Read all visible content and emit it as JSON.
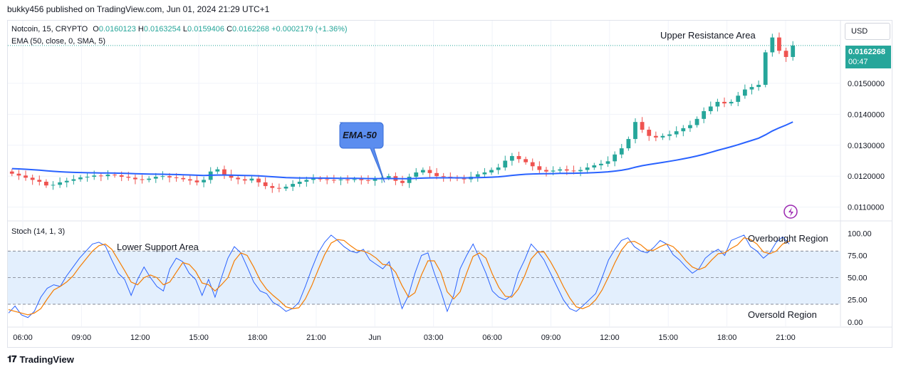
{
  "caption": "bukky456 published on TradingView.com, Jun 01, 2024 21:29 UTC+1",
  "legend": {
    "symbol": "Notcoin, 15, CRYPTO",
    "o_label": "O",
    "o": "0.0160123",
    "h_label": "H",
    "h": "0.0163254",
    "l_label": "L",
    "l": "0.0159406",
    "c_label": "C",
    "c": "0.0162268",
    "change": "+0.0002179 (+1.36%)",
    "ema": "EMA (50, close, 0, SMA, 5)",
    "stoch": "Stoch (14, 1, 3)"
  },
  "currency": "USD",
  "price_tag": {
    "price": "0.0162268",
    "countdown": "00:47"
  },
  "footer": {
    "brand": "TradingView",
    "logo_icon": "tradingview-logo-icon"
  },
  "colors": {
    "up": "#26a69a",
    "down": "#ef5350",
    "ema": "#2962ff",
    "stoch_k": "#2962ff",
    "stoch_d": "#f57c00",
    "band": "#e3effd",
    "annotation_bubble": "#5b8def"
  },
  "chart_data": [
    {
      "type": "candlestick",
      "title": "Notcoin, 15, CRYPTO",
      "ylim": [
        0.0106,
        0.017
      ],
      "y_ticks": [
        "0.0150000",
        "0.0140000",
        "0.0130000",
        "0.0120000",
        "0.0110000"
      ],
      "x_ticks": [
        "06:00",
        "09:00",
        "12:00",
        "15:00",
        "18:00",
        "21:00",
        "Jun",
        "03:00",
        "06:00",
        "09:00",
        "12:00",
        "15:00",
        "18:00",
        "21:00"
      ],
      "close": [
        0.01208,
        0.01202,
        0.01195,
        0.01188,
        0.01182,
        0.0117,
        0.01172,
        0.0118,
        0.01185,
        0.0119,
        0.01196,
        0.01198,
        0.01202,
        0.012,
        0.01205,
        0.01203,
        0.01198,
        0.01195,
        0.0119,
        0.01188,
        0.01192,
        0.01198,
        0.012,
        0.01196,
        0.01194,
        0.0119,
        0.01186,
        0.0118,
        0.01188,
        0.01215,
        0.01222,
        0.01205,
        0.01195,
        0.0119,
        0.01186,
        0.01192,
        0.0118,
        0.01168,
        0.01162,
        0.0116,
        0.01166,
        0.01175,
        0.01182,
        0.01188,
        0.01192,
        0.0119,
        0.01188,
        0.01187,
        0.01189,
        0.01188,
        0.0119,
        0.01187,
        0.01185,
        0.0119,
        0.01195,
        0.012,
        0.01185,
        0.01178,
        0.01198,
        0.01212,
        0.0122,
        0.0121,
        0.012,
        0.01198,
        0.01195,
        0.01192,
        0.0119,
        0.01198,
        0.01206,
        0.01212,
        0.0122,
        0.01228,
        0.0125,
        0.01265,
        0.01255,
        0.01245,
        0.01232,
        0.0122,
        0.01215,
        0.01218,
        0.01222,
        0.01218,
        0.01216,
        0.0122,
        0.01228,
        0.01235,
        0.0124,
        0.01248,
        0.0127,
        0.0129,
        0.0132,
        0.01375,
        0.0135,
        0.0133,
        0.01325,
        0.0133,
        0.01335,
        0.01345,
        0.01355,
        0.01365,
        0.01385,
        0.0141,
        0.01425,
        0.0144,
        0.01435,
        0.0144,
        0.0146,
        0.0148,
        0.01488,
        0.01495,
        0.016,
        0.01648,
        0.01605,
        0.01585,
        0.01622
      ],
      "open_of_first": 0.01215,
      "ema_period": 50,
      "pointer_labels": [
        {
          "text": "Upper Resistance Area",
          "at": "last high"
        },
        {
          "text": "EMA-50",
          "at": "ema line"
        }
      ]
    },
    {
      "type": "line",
      "title": "Stoch (14, 1, 3)",
      "ylim": [
        -5,
        110
      ],
      "y_ticks": [
        "100.00",
        "75.00",
        "50.00",
        "25.00",
        "0.00"
      ],
      "bands": {
        "overbought": 80,
        "oversold": 20,
        "middle": 50
      },
      "annotations": [
        "Lower Support Area",
        "Overbought Region",
        "Oversold Region"
      ],
      "k": [
        10,
        18,
        8,
        5,
        12,
        28,
        38,
        42,
        40,
        52,
        62,
        72,
        80,
        88,
        90,
        86,
        70,
        55,
        48,
        30,
        48,
        62,
        50,
        40,
        35,
        60,
        72,
        68,
        55,
        48,
        30,
        48,
        28,
        50,
        72,
        85,
        78,
        62,
        45,
        35,
        32,
        22,
        18,
        12,
        15,
        22,
        40,
        60,
        78,
        90,
        98,
        92,
        85,
        80,
        78,
        82,
        70,
        65,
        60,
        68,
        40,
        15,
        30,
        55,
        75,
        78,
        55,
        35,
        12,
        30,
        60,
        75,
        88,
        72,
        55,
        35,
        28,
        25,
        30,
        55,
        70,
        88,
        80,
        70,
        55,
        40,
        25,
        15,
        12,
        18,
        25,
        32,
        50,
        70,
        82,
        92,
        95,
        85,
        80,
        78,
        84,
        92,
        88,
        76,
        70,
        62,
        55,
        60,
        72,
        78,
        82,
        75,
        92,
        95,
        98,
        85,
        80,
        72,
        78,
        90,
        96,
        88
      ],
      "d": [
        14,
        12,
        10,
        8,
        10,
        15,
        26,
        36,
        40,
        45,
        52,
        62,
        71,
        80,
        86,
        88,
        82,
        70,
        58,
        45,
        42,
        50,
        53,
        50,
        42,
        45,
        56,
        67,
        65,
        57,
        44,
        42,
        35,
        42,
        50,
        69,
        78,
        75,
        62,
        47,
        37,
        30,
        24,
        17,
        15,
        16,
        26,
        41,
        59,
        76,
        89,
        93,
        92,
        86,
        81,
        80,
        77,
        72,
        65,
        64,
        56,
        41,
        28,
        33,
        53,
        69,
        69,
        56,
        34,
        26,
        34,
        55,
        74,
        78,
        72,
        54,
        39,
        29,
        28,
        37,
        52,
        71,
        79,
        79,
        68,
        55,
        40,
        27,
        17,
        15,
        18,
        25,
        36,
        51,
        67,
        81,
        90,
        91,
        87,
        81,
        81,
        85,
        88,
        85,
        78,
        69,
        62,
        59,
        62,
        70,
        77,
        78,
        83,
        87,
        95,
        93,
        88,
        79,
        77,
        80,
        88,
        91
      ]
    }
  ]
}
